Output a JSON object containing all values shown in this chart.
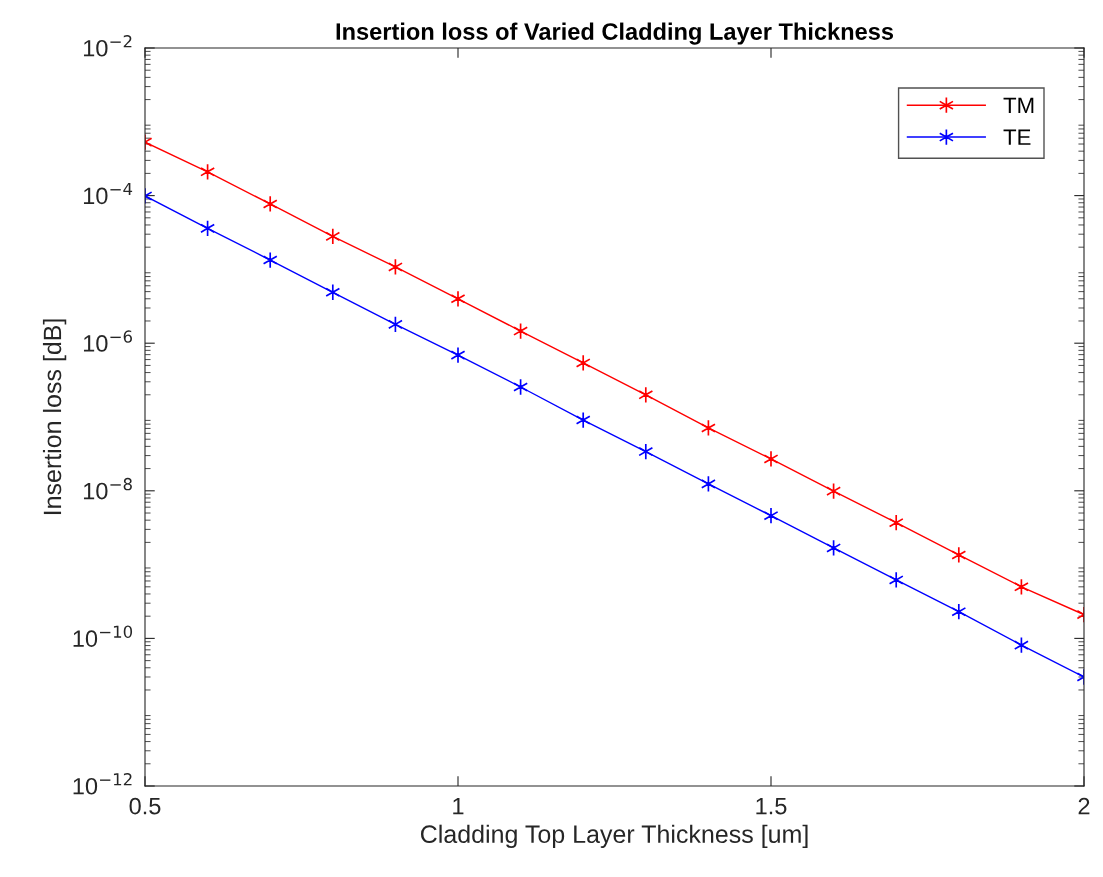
{
  "chart_data": {
    "type": "line",
    "title": "Insertion loss of Varied Cladding Layer Thickness",
    "xlabel": "Cladding Top Layer Thickness [um]",
    "ylabel": "Insertion loss [dB]",
    "x": [
      0.5,
      0.6,
      0.7,
      0.8,
      0.9,
      1.0,
      1.1,
      1.2,
      1.3,
      1.4,
      1.5,
      1.6,
      1.7,
      1.8,
      1.9,
      2.0
    ],
    "series": [
      {
        "name": "TM",
        "color": "#ff0000",
        "values": [
          0.00053,
          0.00021,
          7.7e-05,
          2.8e-05,
          1.08e-05,
          4e-06,
          1.46e-06,
          5.4e-07,
          2e-07,
          7.1e-08,
          2.7e-08,
          9.9e-09,
          3.7e-09,
          1.35e-09,
          5e-10,
          2.1e-10
        ]
      },
      {
        "name": "TE",
        "color": "#0000ff",
        "values": [
          9.9e-05,
          3.6e-05,
          1.34e-05,
          4.9e-06,
          1.8e-06,
          6.9e-07,
          2.55e-07,
          9.1e-08,
          3.4e-08,
          1.24e-08,
          4.6e-09,
          1.68e-09,
          6.2e-10,
          2.3e-10,
          8.1e-11,
          3e-11
        ]
      }
    ],
    "log": "y",
    "xlim": [
      0.5,
      2
    ],
    "xticks": [
      {
        "value": 0.5,
        "label": "0.5"
      },
      {
        "value": 1,
        "label": "1"
      },
      {
        "value": 1.5,
        "label": "1.5"
      },
      {
        "value": 2,
        "label": "2"
      }
    ],
    "ylim": [
      1e-12,
      0.01
    ],
    "yticks": [
      {
        "value": 1e-12,
        "label": "10$^{−12}$"
      },
      {
        "value": 1e-10,
        "label": "10$^{−10}$"
      },
      {
        "value": 1e-08,
        "label": "10$^{−8}$"
      },
      {
        "value": 1e-06,
        "label": "10$^{−6}$"
      },
      {
        "value": 0.0001,
        "label": "10$^{−4}$"
      },
      {
        "value": 0.01,
        "label": "10$^{−2}$"
      }
    ],
    "grid": false,
    "legend": "top right",
    "marker": "cross",
    "line_style": "solid"
  }
}
